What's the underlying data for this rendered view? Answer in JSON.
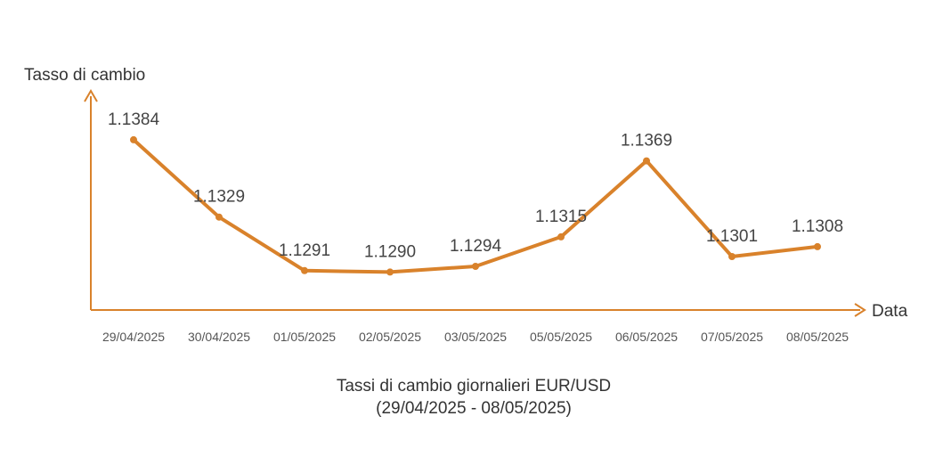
{
  "chart_data": {
    "type": "line",
    "title": "Tassi di cambio giornalieri EUR/USD",
    "subtitle": "(29/04/2025 - 08/05/2025)",
    "xlabel": "Data",
    "ylabel": "Tasso di cambio",
    "categories": [
      "29/04/2025",
      "30/04/2025",
      "01/05/2025",
      "02/05/2025",
      "03/05/2025",
      "05/05/2025",
      "06/05/2025",
      "07/05/2025",
      "08/05/2025"
    ],
    "series": [
      {
        "values": [
          1.1384,
          1.1329,
          1.1291,
          1.129,
          1.1294,
          1.1315,
          1.1369,
          1.1301,
          1.1308
        ]
      }
    ],
    "data_labels": [
      "1.1384",
      "1.1329",
      "1.1291",
      "1.1290",
      "1.1294",
      "1.1315",
      "1.1369",
      "1.1301",
      "1.1308"
    ],
    "ylim": [
      1.1263,
      1.142
    ],
    "grid": false,
    "color": "#d9822b"
  }
}
